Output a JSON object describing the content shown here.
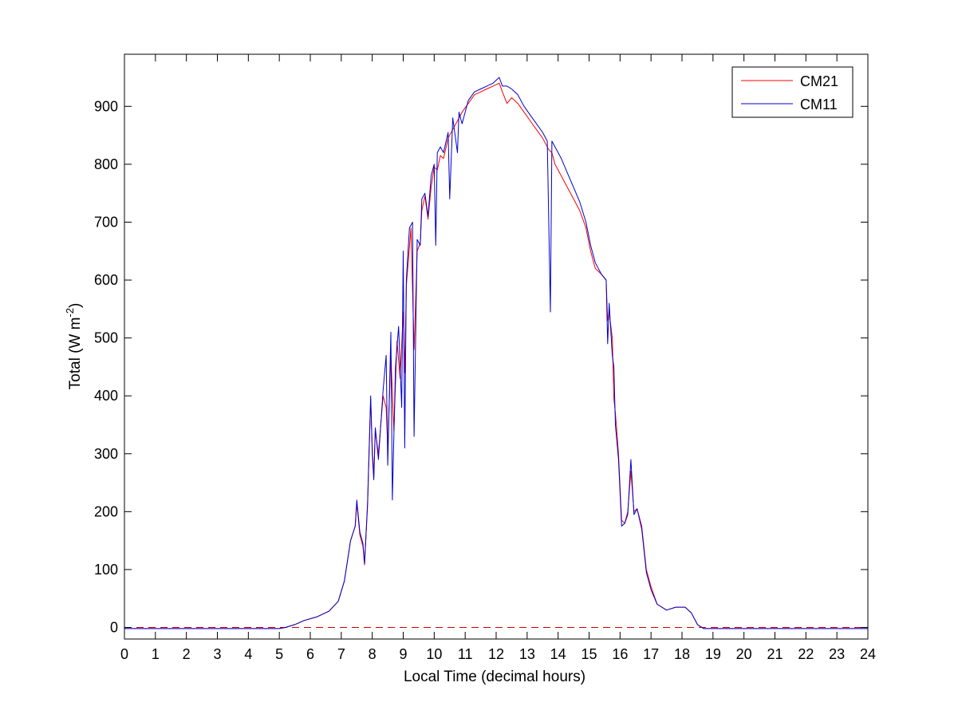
{
  "chart_data": {
    "type": "line",
    "xlabel": "Local Time (decimal hours)",
    "ylabel": {
      "base": "Total (W m",
      "sup": "-2",
      "tail": ")"
    },
    "xlim": [
      0,
      24
    ],
    "ylim": [
      -20,
      990
    ],
    "x_ticks": [
      0,
      1,
      2,
      3,
      4,
      5,
      6,
      7,
      8,
      9,
      10,
      11,
      12,
      13,
      14,
      15,
      16,
      17,
      18,
      19,
      20,
      21,
      22,
      23,
      24
    ],
    "x_tick_labels": [
      "0",
      "1",
      "2",
      "3",
      "4",
      "5",
      "6",
      "7",
      "8",
      "9",
      "10",
      "11",
      "12",
      "13",
      "14",
      "15",
      "16",
      "17",
      "18",
      "19",
      "20",
      "21",
      "22",
      "23",
      "24"
    ],
    "y_ticks": [
      0,
      100,
      200,
      300,
      400,
      500,
      600,
      700,
      800,
      900
    ],
    "y_tick_labels": [
      "0",
      "100",
      "200",
      "300",
      "400",
      "500",
      "600",
      "700",
      "800",
      "900"
    ],
    "grid": false,
    "legend_position": "top-right",
    "reference_line": {
      "y": 0,
      "style": "dashed",
      "color": "#cc0000"
    },
    "series": [
      {
        "name": "CM21",
        "color": "#ff0000",
        "points": [
          [
            0,
            -2
          ],
          [
            1,
            -2
          ],
          [
            2,
            -2
          ],
          [
            3,
            -2
          ],
          [
            4,
            -2
          ],
          [
            5,
            -2
          ],
          [
            5.2,
            0
          ],
          [
            5.5,
            5
          ],
          [
            5.8,
            12
          ],
          [
            6.2,
            18
          ],
          [
            6.6,
            28
          ],
          [
            6.9,
            45
          ],
          [
            7.1,
            80
          ],
          [
            7.3,
            150
          ],
          [
            7.45,
            175
          ],
          [
            7.5,
            215
          ],
          [
            7.6,
            160
          ],
          [
            7.7,
            140
          ],
          [
            7.75,
            108
          ],
          [
            7.85,
            210
          ],
          [
            7.95,
            395
          ],
          [
            8.0,
            310
          ],
          [
            8.05,
            260
          ],
          [
            8.1,
            340
          ],
          [
            8.2,
            300
          ],
          [
            8.35,
            400
          ],
          [
            8.45,
            380
          ],
          [
            8.5,
            310
          ],
          [
            8.6,
            470
          ],
          [
            8.7,
            340
          ],
          [
            8.8,
            495
          ],
          [
            8.9,
            430
          ],
          [
            9.0,
            545
          ],
          [
            9.05,
            440
          ],
          [
            9.1,
            590
          ],
          [
            9.25,
            690
          ],
          [
            9.35,
            480
          ],
          [
            9.45,
            650
          ],
          [
            9.55,
            665
          ],
          [
            9.6,
            720
          ],
          [
            9.7,
            745
          ],
          [
            9.8,
            705
          ],
          [
            9.9,
            760
          ],
          [
            10.0,
            795
          ],
          [
            10.1,
            790
          ],
          [
            10.2,
            815
          ],
          [
            10.3,
            810
          ],
          [
            10.45,
            845
          ],
          [
            10.6,
            860
          ],
          [
            10.75,
            875
          ],
          [
            10.9,
            890
          ],
          [
            11.1,
            905
          ],
          [
            11.3,
            920
          ],
          [
            11.5,
            925
          ],
          [
            11.7,
            930
          ],
          [
            11.9,
            935
          ],
          [
            12.1,
            940
          ],
          [
            12.2,
            925
          ],
          [
            12.35,
            905
          ],
          [
            12.5,
            915
          ],
          [
            12.7,
            905
          ],
          [
            12.9,
            890
          ],
          [
            13.1,
            875
          ],
          [
            13.3,
            860
          ],
          [
            13.5,
            845
          ],
          [
            13.7,
            825
          ],
          [
            13.8,
            820
          ],
          [
            13.9,
            800
          ],
          [
            14.1,
            780
          ],
          [
            14.3,
            760
          ],
          [
            14.5,
            740
          ],
          [
            14.7,
            720
          ],
          [
            14.9,
            690
          ],
          [
            15.05,
            650
          ],
          [
            15.2,
            620
          ],
          [
            15.4,
            610
          ],
          [
            15.55,
            600
          ],
          [
            15.6,
            530
          ],
          [
            15.65,
            545
          ],
          [
            15.75,
            500
          ],
          [
            15.8,
            395
          ],
          [
            15.85,
            370
          ],
          [
            15.95,
            300
          ],
          [
            16.05,
            185
          ],
          [
            16.15,
            180
          ],
          [
            16.25,
            200
          ],
          [
            16.35,
            270
          ],
          [
            16.45,
            200
          ],
          [
            16.55,
            205
          ],
          [
            16.7,
            175
          ],
          [
            16.85,
            100
          ],
          [
            17.0,
            70
          ],
          [
            17.2,
            40
          ],
          [
            17.5,
            30
          ],
          [
            17.8,
            35
          ],
          [
            18.1,
            35
          ],
          [
            18.3,
            25
          ],
          [
            18.5,
            5
          ],
          [
            18.7,
            -2
          ],
          [
            19,
            -2
          ],
          [
            20,
            -2
          ],
          [
            21,
            -2
          ],
          [
            22,
            -2
          ],
          [
            23,
            -2
          ],
          [
            24,
            -2
          ]
        ]
      },
      {
        "name": "CM11",
        "color": "#0000cc",
        "points": [
          [
            0,
            -2
          ],
          [
            1,
            -2
          ],
          [
            2,
            -2
          ],
          [
            3,
            -2
          ],
          [
            4,
            -2
          ],
          [
            5,
            -2
          ],
          [
            5.2,
            0
          ],
          [
            5.5,
            5
          ],
          [
            5.8,
            12
          ],
          [
            6.2,
            18
          ],
          [
            6.6,
            28
          ],
          [
            6.9,
            45
          ],
          [
            7.1,
            80
          ],
          [
            7.3,
            150
          ],
          [
            7.45,
            175
          ],
          [
            7.5,
            220
          ],
          [
            7.6,
            165
          ],
          [
            7.7,
            145
          ],
          [
            7.75,
            110
          ],
          [
            7.85,
            215
          ],
          [
            7.95,
            400
          ],
          [
            8.0,
            300
          ],
          [
            8.05,
            255
          ],
          [
            8.1,
            345
          ],
          [
            8.2,
            290
          ],
          [
            8.35,
            410
          ],
          [
            8.45,
            470
          ],
          [
            8.5,
            280
          ],
          [
            8.6,
            510
          ],
          [
            8.65,
            220
          ],
          [
            8.75,
            450
          ],
          [
            8.85,
            520
          ],
          [
            8.95,
            380
          ],
          [
            9.0,
            650
          ],
          [
            9.05,
            310
          ],
          [
            9.1,
            600
          ],
          [
            9.2,
            690
          ],
          [
            9.3,
            700
          ],
          [
            9.35,
            330
          ],
          [
            9.45,
            670
          ],
          [
            9.55,
            660
          ],
          [
            9.6,
            740
          ],
          [
            9.7,
            750
          ],
          [
            9.8,
            710
          ],
          [
            9.9,
            780
          ],
          [
            10.0,
            800
          ],
          [
            10.05,
            660
          ],
          [
            10.1,
            820
          ],
          [
            10.2,
            830
          ],
          [
            10.3,
            820
          ],
          [
            10.45,
            855
          ],
          [
            10.5,
            740
          ],
          [
            10.6,
            880
          ],
          [
            10.75,
            820
          ],
          [
            10.8,
            890
          ],
          [
            10.9,
            870
          ],
          [
            11.1,
            910
          ],
          [
            11.3,
            925
          ],
          [
            11.5,
            930
          ],
          [
            11.7,
            935
          ],
          [
            11.9,
            940
          ],
          [
            12.1,
            950
          ],
          [
            12.2,
            935
          ],
          [
            12.35,
            935
          ],
          [
            12.5,
            930
          ],
          [
            12.7,
            920
          ],
          [
            12.9,
            900
          ],
          [
            13.1,
            885
          ],
          [
            13.3,
            870
          ],
          [
            13.5,
            855
          ],
          [
            13.65,
            840
          ],
          [
            13.75,
            545
          ],
          [
            13.8,
            840
          ],
          [
            13.9,
            830
          ],
          [
            14.1,
            810
          ],
          [
            14.3,
            785
          ],
          [
            14.5,
            760
          ],
          [
            14.7,
            735
          ],
          [
            14.9,
            700
          ],
          [
            15.05,
            660
          ],
          [
            15.2,
            630
          ],
          [
            15.4,
            610
          ],
          [
            15.55,
            600
          ],
          [
            15.6,
            490
          ],
          [
            15.65,
            560
          ],
          [
            15.75,
            470
          ],
          [
            15.8,
            450
          ],
          [
            15.85,
            350
          ],
          [
            15.95,
            290
          ],
          [
            16.05,
            175
          ],
          [
            16.15,
            180
          ],
          [
            16.25,
            195
          ],
          [
            16.35,
            290
          ],
          [
            16.45,
            195
          ],
          [
            16.55,
            205
          ],
          [
            16.7,
            170
          ],
          [
            16.85,
            95
          ],
          [
            17.0,
            65
          ],
          [
            17.2,
            40
          ],
          [
            17.5,
            30
          ],
          [
            17.8,
            35
          ],
          [
            18.1,
            35
          ],
          [
            18.3,
            25
          ],
          [
            18.5,
            5
          ],
          [
            18.7,
            -2
          ],
          [
            19,
            -2
          ],
          [
            20,
            -2
          ],
          [
            21,
            -2
          ],
          [
            22,
            -2
          ],
          [
            23,
            -2
          ],
          [
            24,
            -2
          ]
        ]
      }
    ]
  }
}
